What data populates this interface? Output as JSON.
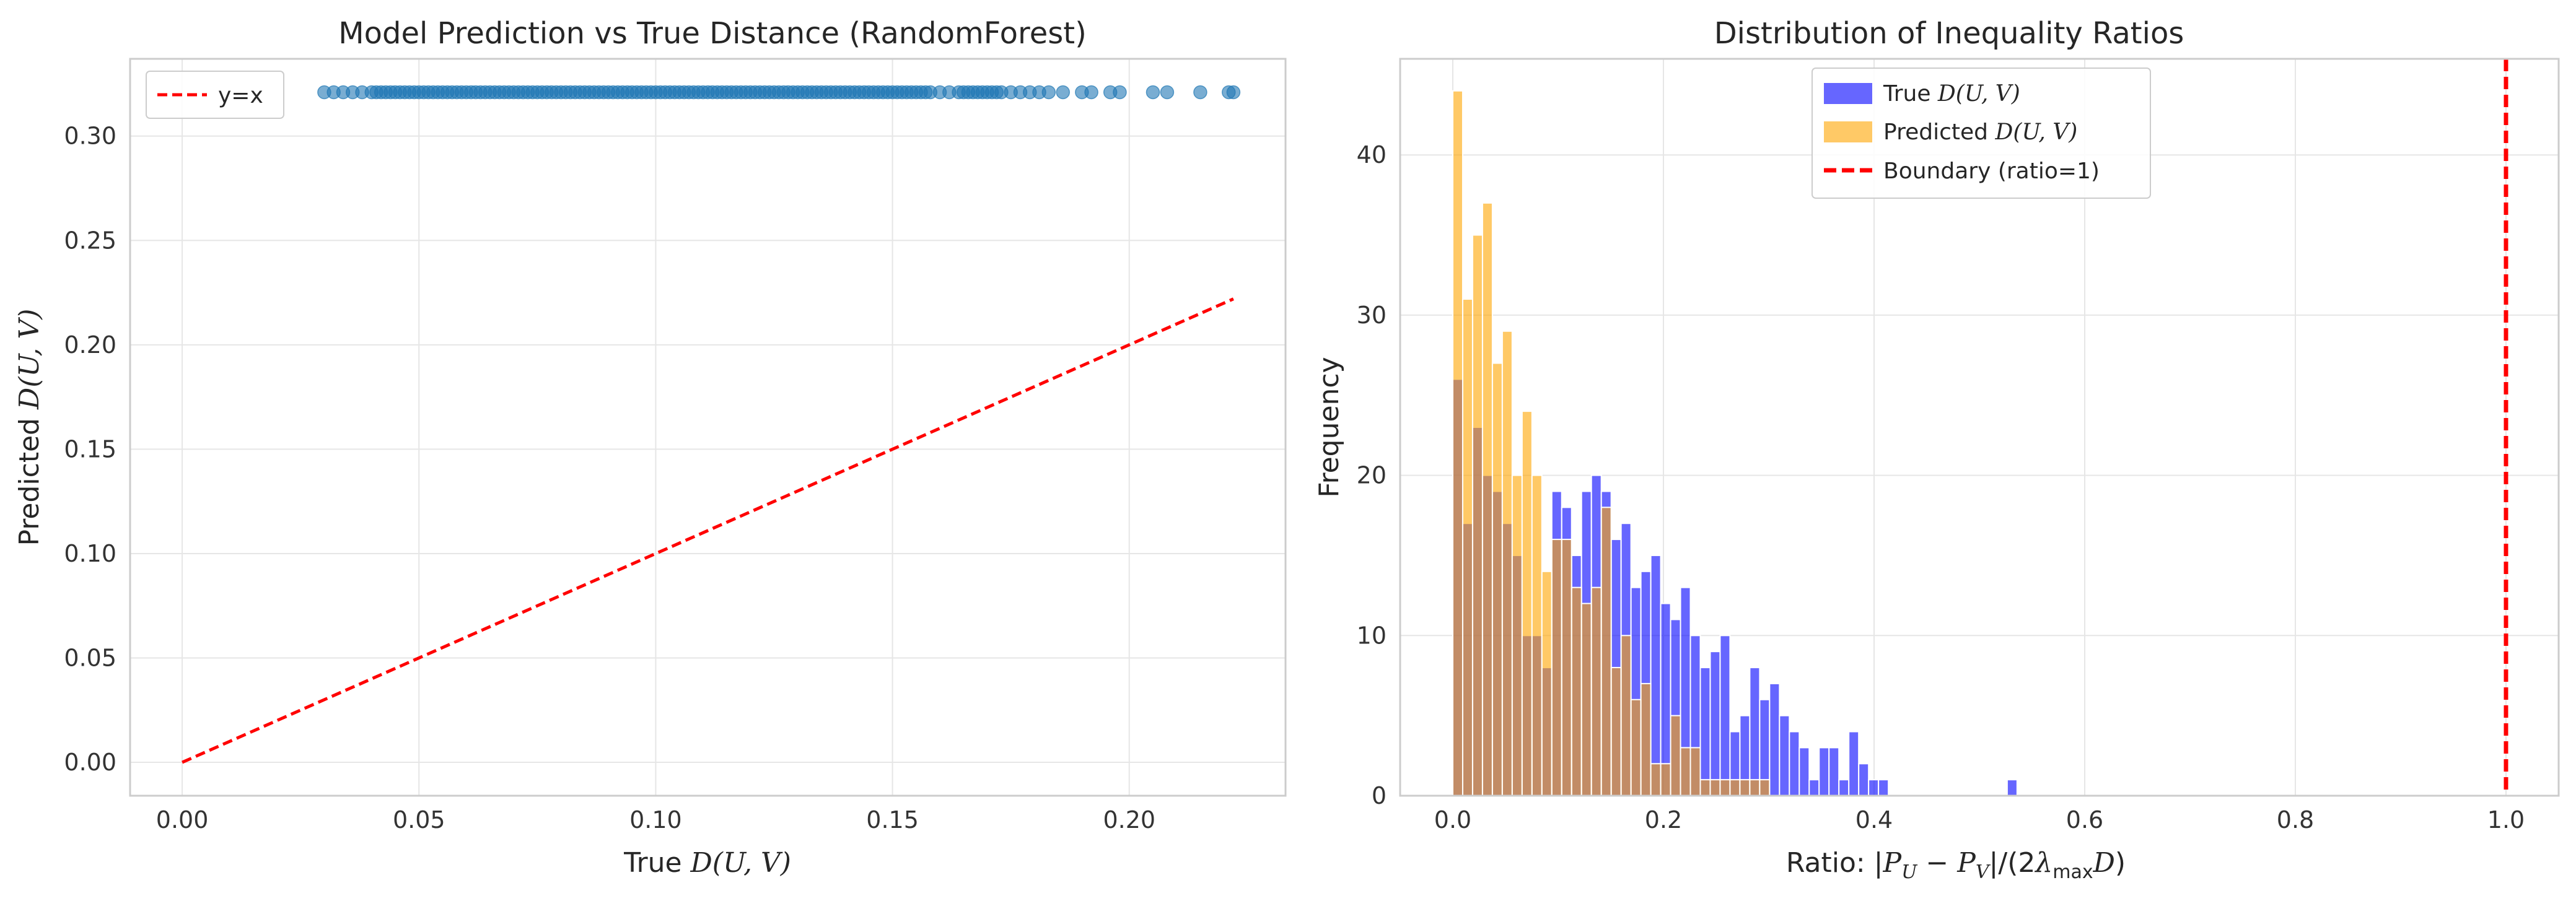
{
  "chart_data": [
    {
      "type": "scatter",
      "title": "Model Prediction vs True Distance (RandomForest)",
      "xlabel_prefix": "True ",
      "xlabel_math": "D(U, V)",
      "ylabel_prefix": "Predicted ",
      "ylabel_math": "D(U, V)",
      "xlim": [
        -0.011,
        0.233
      ],
      "ylim": [
        -0.016,
        0.337
      ],
      "xticks": [
        0.0,
        0.05,
        0.1,
        0.15,
        0.2
      ],
      "xtick_labels": [
        "0.00",
        "0.05",
        "0.10",
        "0.15",
        "0.20"
      ],
      "yticks": [
        0.0,
        0.05,
        0.1,
        0.15,
        0.2,
        0.25,
        0.3
      ],
      "ytick_labels": [
        "0.00",
        "0.05",
        "0.10",
        "0.15",
        "0.20",
        "0.25",
        "0.30"
      ],
      "grid": true,
      "legend_position": "upper-left",
      "scatter_color": "#1f77b4",
      "scatter_y": 0.321,
      "scatter_x": [
        0.03,
        0.032,
        0.034,
        0.036,
        0.038,
        0.04,
        0.041,
        0.042,
        0.043,
        0.044,
        0.045,
        0.046,
        0.047,
        0.048,
        0.049,
        0.05,
        0.051,
        0.052,
        0.053,
        0.054,
        0.055,
        0.056,
        0.057,
        0.058,
        0.059,
        0.06,
        0.061,
        0.062,
        0.063,
        0.064,
        0.065,
        0.066,
        0.067,
        0.068,
        0.069,
        0.07,
        0.071,
        0.072,
        0.073,
        0.074,
        0.075,
        0.076,
        0.077,
        0.078,
        0.079,
        0.08,
        0.081,
        0.082,
        0.083,
        0.084,
        0.085,
        0.086,
        0.087,
        0.088,
        0.089,
        0.09,
        0.091,
        0.092,
        0.093,
        0.094,
        0.095,
        0.096,
        0.097,
        0.098,
        0.099,
        0.1,
        0.101,
        0.102,
        0.103,
        0.104,
        0.105,
        0.106,
        0.107,
        0.108,
        0.109,
        0.11,
        0.111,
        0.112,
        0.113,
        0.114,
        0.115,
        0.116,
        0.117,
        0.118,
        0.119,
        0.12,
        0.121,
        0.122,
        0.123,
        0.124,
        0.125,
        0.126,
        0.127,
        0.128,
        0.129,
        0.13,
        0.131,
        0.132,
        0.133,
        0.134,
        0.135,
        0.136,
        0.137,
        0.138,
        0.139,
        0.14,
        0.141,
        0.142,
        0.143,
        0.144,
        0.145,
        0.146,
        0.147,
        0.148,
        0.149,
        0.15,
        0.151,
        0.152,
        0.153,
        0.154,
        0.155,
        0.156,
        0.157,
        0.158,
        0.16,
        0.162,
        0.164,
        0.165,
        0.166,
        0.167,
        0.168,
        0.169,
        0.17,
        0.171,
        0.172,
        0.173,
        0.175,
        0.177,
        0.179,
        0.181,
        0.183,
        0.186,
        0.19,
        0.192,
        0.196,
        0.198,
        0.205,
        0.208,
        0.215,
        0.221,
        0.222
      ],
      "series": [
        {
          "name": "y=x",
          "style": "dashed",
          "color": "#ff0000",
          "x": [
            0.0,
            0.222
          ],
          "y": [
            0.0,
            0.222
          ]
        }
      ]
    },
    {
      "type": "histogram",
      "title": "Distribution of Inequality Ratios",
      "xlabel": "Ratio: |P_U − P_V|/(2λ_max D)",
      "ylabel": "Frequency",
      "xlim": [
        -0.05,
        1.05
      ],
      "ylim": [
        0,
        46
      ],
      "xticks": [
        0.0,
        0.2,
        0.4,
        0.6,
        0.8,
        1.0
      ],
      "xtick_labels": [
        "0.0",
        "0.2",
        "0.4",
        "0.6",
        "0.8",
        "1.0"
      ],
      "yticks": [
        0,
        10,
        20,
        30,
        40
      ],
      "ytick_labels": [
        "0",
        "10",
        "20",
        "30",
        "40"
      ],
      "grid": true,
      "legend_position": "upper-center",
      "bin_start": 0.0,
      "bin_width": 0.0094,
      "boundary_x": 1.0,
      "series": [
        {
          "name": "True D(U, V)",
          "legend_prefix": "True ",
          "legend_math": "D(U, V)",
          "color": "#0000ff",
          "counts": [
            26,
            17,
            23,
            20,
            19,
            17,
            15,
            10,
            10,
            8,
            19,
            18,
            15,
            19,
            20,
            19,
            16,
            17,
            13,
            14,
            15,
            12,
            11,
            13,
            10,
            8,
            9,
            10,
            4,
            5,
            8,
            6,
            7,
            5,
            4,
            3,
            1,
            3,
            3,
            1,
            4,
            2,
            1,
            1,
            0,
            0,
            0,
            0,
            0,
            0,
            0,
            0,
            0,
            0,
            0,
            0,
            1,
            0,
            0,
            0
          ]
        },
        {
          "name": "Predicted D(U, V)",
          "legend_prefix": "Predicted ",
          "legend_math": "D(U, V)",
          "color": "#ffa500",
          "counts": [
            44,
            31,
            35,
            37,
            27,
            29,
            20,
            24,
            20,
            14,
            16,
            16,
            13,
            12,
            13,
            18,
            8,
            10,
            6,
            7,
            2,
            2,
            5,
            3,
            3,
            1,
            1,
            1,
            1,
            1,
            1,
            1,
            0,
            0,
            0,
            0,
            0,
            0,
            0,
            0,
            0,
            0,
            0,
            0,
            0,
            0,
            0,
            0,
            0,
            0,
            0,
            0,
            0,
            0,
            0,
            0,
            0,
            0,
            0,
            0
          ]
        },
        {
          "name": "Boundary (ratio=1)",
          "color": "#ff0000",
          "style": "dashed"
        }
      ]
    }
  ]
}
